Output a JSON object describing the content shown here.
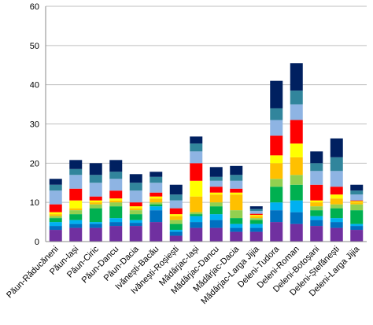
{
  "chart_data": {
    "type": "stacked_bar",
    "categories": [
      "Păun-Răducăneni",
      "Păun-Iași",
      "Păun-Ciric",
      "Păun-Dancu",
      "Păun-Dacia",
      "Ivănești-Bacău",
      "Ivănești-Roșiești",
      "Mădârjac-Iași",
      "Mădârjac-Dancu",
      "Mădârjac-Dacia",
      "Mădârjac-Larga Jijia",
      "Deleni-Tudora",
      "Deleni-Roman",
      "Deleni-Botoșani",
      "Deleni-Ștefănești",
      "Deleni-Larga Jijia"
    ],
    "series": [
      {
        "color": "#7030a0",
        "values": [
          3,
          3.5,
          3.5,
          4,
          4,
          5,
          1.5,
          3.5,
          3.5,
          2.5,
          2.5,
          5,
          4.5,
          4,
          3.5,
          3
        ]
      },
      {
        "color": "#0070c0",
        "values": [
          1,
          1,
          1,
          1,
          0.8,
          3,
          1,
          1.5,
          2,
          1,
          1,
          3,
          3,
          1.5,
          1.5,
          1
        ]
      },
      {
        "color": "#00b0f0",
        "values": [
          1,
          1,
          0.5,
          1,
          0.7,
          1,
          0.5,
          1.5,
          1.5,
          1,
          1,
          2,
          3,
          1,
          1,
          0.5
        ]
      },
      {
        "color": "#00b050",
        "values": [
          1,
          1.5,
          3.5,
          3,
          1.5,
          0.5,
          1.5,
          0.5,
          2,
          1.5,
          1,
          4,
          4,
          1.5,
          2.5,
          3.5
        ]
      },
      {
        "color": "#92d050",
        "values": [
          0.5,
          1,
          1,
          1,
          1,
          0.5,
          1,
          0.5,
          1,
          2,
          0.5,
          2,
          2.5,
          1,
          1,
          1.5
        ]
      },
      {
        "color": "#ffc000",
        "values": [
          0.5,
          0.5,
          0.5,
          0.5,
          0.5,
          1,
          1,
          4,
          2,
          4,
          0.5,
          4,
          4.5,
          1,
          1.5,
          0.5
        ]
      },
      {
        "color": "#ffff00",
        "values": [
          0.5,
          2,
          0.5,
          0.5,
          0.5,
          0.5,
          0.5,
          4,
          0.5,
          0.5,
          0.3,
          2,
          3.5,
          0.5,
          1,
          0.3
        ]
      },
      {
        "color": "#ff0000",
        "values": [
          2,
          3,
          1,
          2,
          1,
          1,
          1.5,
          4.5,
          1.5,
          1,
          0.3,
          5,
          6,
          4,
          2,
          0.2
        ]
      },
      {
        "color": "#8eb4e3",
        "values": [
          3.5,
          3.5,
          3.5,
          3,
          3,
          2.5,
          2,
          3,
          1.5,
          2,
          0.7,
          4,
          4,
          3.5,
          4,
          1.5
        ]
      },
      {
        "color": "#31859c",
        "values": [
          1.5,
          1.5,
          2,
          1.8,
          2,
          1.5,
          1.5,
          2,
          1,
          1.5,
          0.5,
          3,
          3.5,
          2,
          3.5,
          1
        ]
      },
      {
        "color": "#002060",
        "values": [
          1.5,
          2.3,
          3,
          3,
          2.2,
          1.3,
          2.5,
          1.8,
          2.5,
          2.3,
          0.7,
          7,
          7,
          3,
          4.8,
          1.5
        ]
      }
    ],
    "ylim": [
      0,
      60
    ],
    "yticks": [
      0,
      10,
      20,
      30,
      40,
      50,
      60
    ],
    "grid": true
  }
}
